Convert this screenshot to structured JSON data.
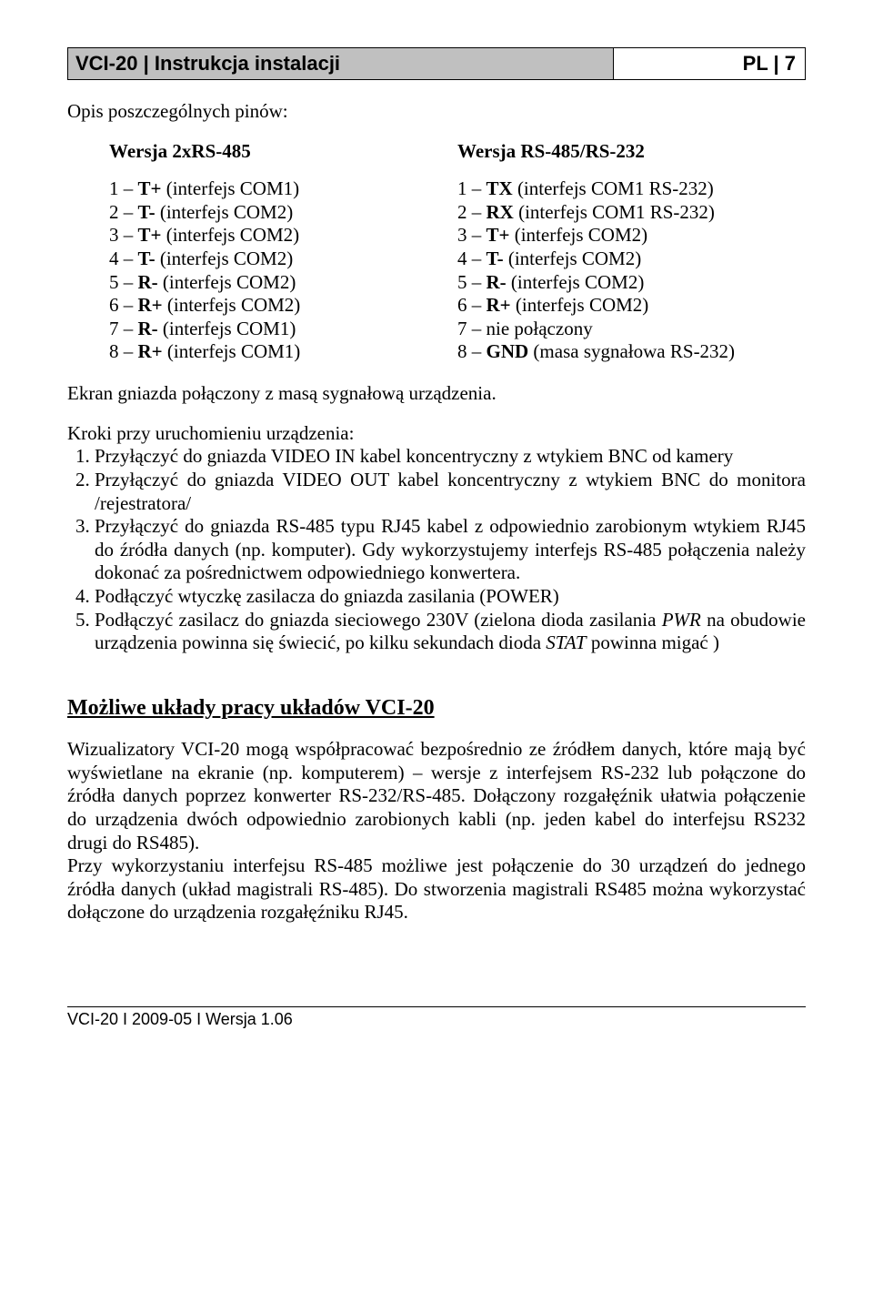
{
  "header": {
    "left": "VCI-20 | Instrukcja instalacji",
    "right": "PL | 7"
  },
  "intro": "Opis poszczególnych pinów:",
  "columns": {
    "left": {
      "title": "Wersja 2xRS-485",
      "pins": [
        {
          "n": "1 – ",
          "b": "T+",
          "t": " (interfejs COM1)"
        },
        {
          "n": "2 – ",
          "b": "T-",
          "t": " (interfejs COM2)"
        },
        {
          "n": "3 – ",
          "b": "T+",
          "t": " (interfejs COM2)"
        },
        {
          "n": "4 – ",
          "b": "T-",
          "t": " (interfejs COM2)"
        },
        {
          "n": "5 – ",
          "b": "R-",
          "t": " (interfejs COM2)"
        },
        {
          "n": "6 – ",
          "b": "R+",
          "t": " (interfejs COM2)"
        },
        {
          "n": "7 – ",
          "b": "R-",
          "t": " (interfejs COM1)"
        },
        {
          "n": "8 – ",
          "b": "R+",
          "t": " (interfejs COM1)"
        }
      ]
    },
    "right": {
      "title": "Wersja RS-485/RS-232",
      "pins": [
        {
          "n": "1 – ",
          "b": "TX",
          "t": " (interfejs COM1 RS-232)"
        },
        {
          "n": "2 – ",
          "b": "RX",
          "t": " (interfejs COM1 RS-232)"
        },
        {
          "n": "3 – ",
          "b": "T+",
          "t": "  (interfejs COM2)"
        },
        {
          "n": "4 – ",
          "b": "T-",
          "t": " (interfejs COM2)"
        },
        {
          "n": "5 – ",
          "b": "R-",
          "t": " (interfejs COM2)"
        },
        {
          "n": "6 – ",
          "b": "R+",
          "t": " (interfejs COM2)"
        },
        {
          "n": "7 – nie połączony",
          "b": "",
          "t": ""
        },
        {
          "n": "8 – ",
          "b": "GND",
          "t": " (masa sygnałowa RS-232)"
        }
      ]
    }
  },
  "screen_line": "Ekran gniazda połączony z masą sygnałową urządzenia.",
  "steps_title": "Kroki przy uruchomieniu urządzenia:",
  "steps": [
    "Przyłączyć do gniazda VIDEO IN kabel koncentryczny z wtykiem BNC od kamery",
    "Przyłączyć do gniazda VIDEO OUT kabel koncentryczny z wtykiem BNC do monitora /rejestratora/",
    "Przyłączyć do gniazda RS-485 typu RJ45 kabel z odpowiednio zarobionym wtykiem RJ45 do źródła danych (np. komputer). Gdy wykorzystujemy interfejs RS-485 połączenia należy dokonać za pośrednictwem odpowiedniego konwertera.",
    "Podłączyć wtyczkę zasilacza do gniazda zasilania (POWER)"
  ],
  "step5": {
    "pre": "Podłączyć zasilacz do gniazda  sieciowego 230V (zielona dioda zasilania ",
    "i1": "PWR",
    "mid": " na obudowie urządzenia powinna się świecić, po kilku sekundach dioda ",
    "i2": "STAT",
    "post": " powinna migać )"
  },
  "section2_title": "Możliwe układy pracy układów VCI-20",
  "para1": "Wizualizatory VCI-20 mogą współpracować bezpośrednio ze źródłem danych, które mają być wyświetlane na ekranie (np. komputerem) – wersje z interfejsem RS-232 lub połączone do źródła danych poprzez konwerter RS-232/RS-485. Dołączony rozgałęźnik ułatwia połączenie do urządzenia dwóch odpowiednio zarobionych kabli (np. jeden kabel do interfejsu RS232 drugi do RS485).",
  "para2": "Przy wykorzystaniu interfejsu RS-485 możliwe jest połączenie do 30 urządzeń do jednego źródła danych (układ magistrali RS-485). Do stworzenia magistrali RS485 można wykorzystać dołączone do urządzenia rozgałęźniku RJ45.",
  "footer": "VCI-20 I 2009-05 I Wersja 1.06"
}
